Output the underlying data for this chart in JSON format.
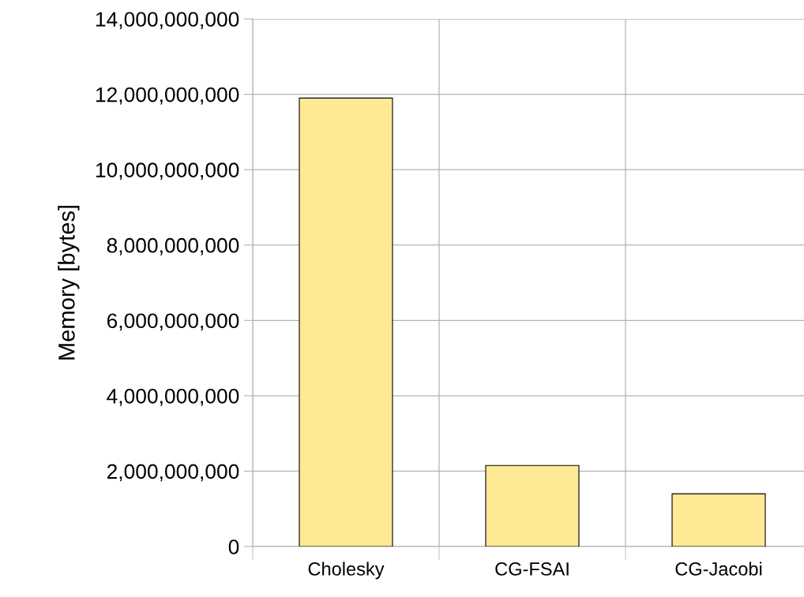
{
  "chart_data": {
    "type": "bar",
    "ylabel": "Memory [bytes]",
    "categories": [
      "Cholesky",
      "CG-FSAI",
      "CG-Jacobi"
    ],
    "values": [
      11900000000,
      2150000000,
      1400000000
    ],
    "color": "#ffe994",
    "ylim": [
      0,
      14000000000
    ],
    "yticks": [
      {
        "value": 0,
        "label": "0"
      },
      {
        "value": 2000000000,
        "label": "2,000,000,000"
      },
      {
        "value": 4000000000,
        "label": "4,000,000,000"
      },
      {
        "value": 6000000000,
        "label": "6,000,000,000"
      },
      {
        "value": 8000000000,
        "label": "8,000,000,000"
      },
      {
        "value": 10000000000,
        "label": "10,000,000,000"
      },
      {
        "value": 12000000000,
        "label": "12,000,000,000"
      },
      {
        "value": 14000000000,
        "label": "14,000,000,000"
      }
    ],
    "grid": true
  }
}
